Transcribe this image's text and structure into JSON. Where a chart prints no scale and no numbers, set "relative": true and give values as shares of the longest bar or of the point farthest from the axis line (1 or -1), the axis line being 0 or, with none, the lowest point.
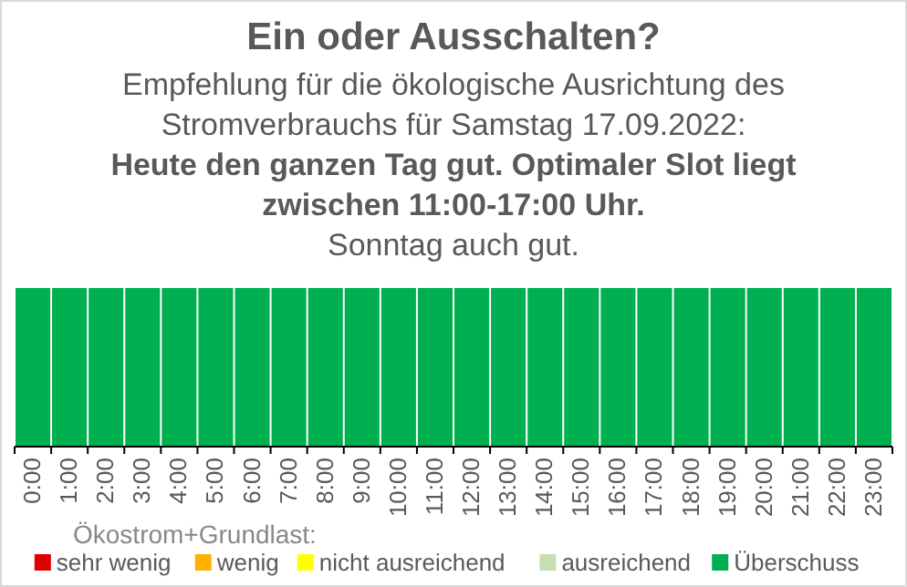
{
  "chart_data": {
    "type": "bar",
    "title": "Ein oder Ausschalten?",
    "subtitle": "Empfehlung für die ökologische Ausrichtung des\nStromverbrauchs für Samstag 17.09.2022:",
    "annotations": [
      "Heute den ganzen Tag gut. Optimaler Slot liegt\nzwischen 11:00-17:00 Uhr.",
      "Sonntag auch gut."
    ],
    "categories": [
      "0:00",
      "1:00",
      "2:00",
      "3:00",
      "4:00",
      "5:00",
      "6:00",
      "7:00",
      "8:00",
      "9:00",
      "10:00",
      "11:00",
      "12:00",
      "13:00",
      "14:00",
      "15:00",
      "16:00",
      "17:00",
      "18:00",
      "19:00",
      "20:00",
      "21:00",
      "22:00",
      "23:00"
    ],
    "relative": true,
    "stacked": true,
    "legend": "bottom",
    "legend_title": "Ökostrom+Grundlast:",
    "series": [
      {
        "name": "sehr wenig",
        "color": "#e00000",
        "values": [
          0,
          0,
          0,
          0,
          0,
          0,
          0,
          0,
          0,
          0,
          0,
          0,
          0,
          0,
          0,
          0,
          0,
          0,
          0,
          0,
          0,
          0,
          0,
          0
        ]
      },
      {
        "name": "wenig",
        "color": "#ffb000",
        "values": [
          0,
          0,
          0,
          0,
          0,
          0,
          0,
          0,
          0,
          0,
          0,
          0,
          0,
          0,
          0,
          0,
          0,
          0,
          0,
          0,
          0,
          0,
          0,
          0
        ]
      },
      {
        "name": "nicht ausreichend",
        "color": "#ffff00",
        "values": [
          0,
          0,
          0,
          0,
          0,
          0,
          0,
          0,
          0,
          0,
          0,
          0,
          0,
          0,
          0,
          0,
          0,
          0,
          0,
          0,
          0,
          0,
          0,
          0
        ]
      },
      {
        "name": "ausreichend",
        "color": "#c5dfb4",
        "values": [
          0,
          0,
          0,
          0,
          0,
          0,
          0,
          0,
          0,
          0,
          0,
          0,
          0,
          0,
          0,
          0,
          0,
          0,
          0,
          0,
          0,
          0,
          0,
          0
        ]
      },
      {
        "name": "Überschuss",
        "color": "#00b050",
        "values": [
          1,
          1,
          1,
          1,
          1,
          1,
          1,
          1,
          1,
          1,
          1,
          1,
          1,
          1,
          1,
          1,
          1,
          1,
          1,
          1,
          1,
          1,
          1,
          1
        ]
      }
    ]
  }
}
